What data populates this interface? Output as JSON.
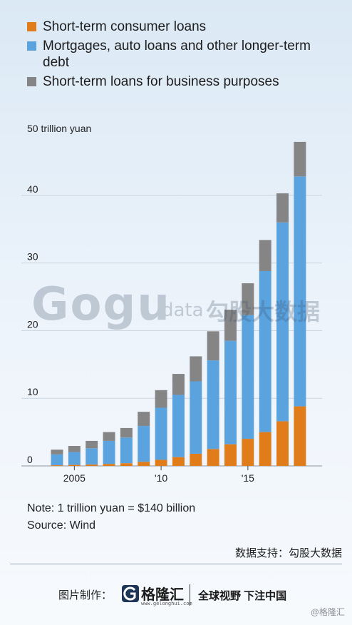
{
  "legend": [
    {
      "label": "Short-term consumer loans",
      "color": "#e07c1a"
    },
    {
      "label": "Mortgages, auto loans and other longer-term debt",
      "color": "#5aa3df"
    },
    {
      "label": "Short-term loans for business purposes",
      "color": "#858585"
    }
  ],
  "chart_data": {
    "type": "bar",
    "stacked": true,
    "categories": [
      "2004",
      "2005",
      "2006",
      "2007",
      "2008",
      "2009",
      "2010",
      "2011",
      "2012",
      "2013",
      "2014",
      "2015",
      "2016",
      "2017",
      "2018"
    ],
    "series": [
      {
        "name": "Short-term consumer loans",
        "color": "#e07c1a",
        "values": [
          0.1,
          0.15,
          0.2,
          0.3,
          0.4,
          0.6,
          0.9,
          1.3,
          1.8,
          2.5,
          3.2,
          4.0,
          5.0,
          6.6,
          8.8
        ]
      },
      {
        "name": "Mortgages, auto loans and other longer-term debt",
        "color": "#5aa3df",
        "values": [
          1.6,
          1.9,
          2.4,
          3.4,
          3.8,
          5.3,
          7.7,
          9.2,
          10.7,
          13.1,
          15.3,
          18.3,
          23.8,
          29.4,
          34.0
        ]
      },
      {
        "name": "Short-term loans for business purposes",
        "color": "#858585",
        "values": [
          0.7,
          0.9,
          1.1,
          1.3,
          1.4,
          2.1,
          2.6,
          3.1,
          3.7,
          4.3,
          4.6,
          4.7,
          4.6,
          4.3,
          5.1
        ]
      }
    ],
    "y_unit_label": "50 trillion yuan",
    "y_ticks": [
      0,
      10,
      20,
      30,
      40
    ],
    "x_tick_labels": [
      {
        "category": "2005",
        "label": "2005"
      },
      {
        "category": "2010",
        "label": "'10"
      },
      {
        "category": "2015",
        "label": "'15"
      }
    ],
    "ylim": [
      0,
      50
    ],
    "grid": true
  },
  "watermark": {
    "logo": "Gogu",
    "sub": "data",
    "cn": "勾股大数据"
  },
  "note": "Note: 1 trillion yuan = $140 billion",
  "source": "Source: Wind",
  "credit": "数据支持：勾股大数据",
  "footer": {
    "label": "图片制作：",
    "brand_name": "格隆汇",
    "brand_url": "www.gelonghui.com",
    "slogan": "全球视野 下注中国"
  },
  "corner_mark": "@格隆汇"
}
